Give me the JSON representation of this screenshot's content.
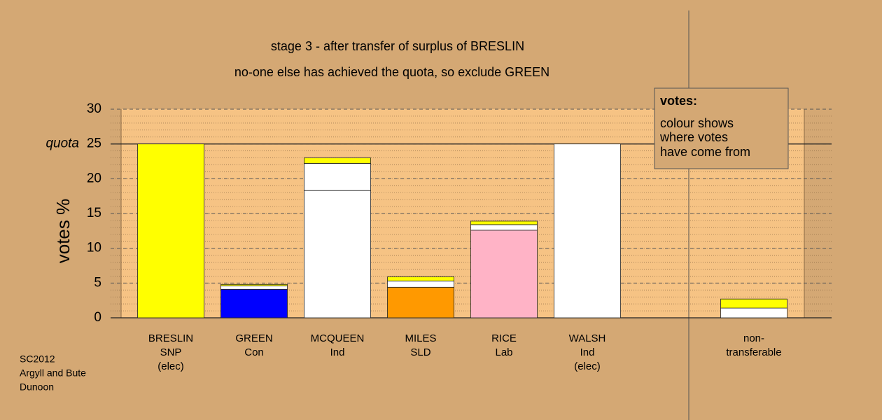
{
  "chart_data": {
    "type": "stacked-bar",
    "title": "stage 3 - after transfer of surplus of BRESLIN",
    "subtitle": "no-one else has achieved the quota, so exclude GREEN",
    "y_label": "votes %",
    "categories": [
      [
        "BRESLIN",
        "SNP",
        "(elec)"
      ],
      [
        "GREEN",
        "Con"
      ],
      [
        "MCQUEEN",
        "Ind"
      ],
      [
        "MILES",
        "SLD"
      ],
      [
        "RICE",
        "Lab"
      ],
      [
        "WALSH",
        "Ind",
        "(elec)"
      ],
      null,
      [
        "non-",
        "transferable"
      ]
    ],
    "series": [
      {
        "values": [
          25,
          4.1,
          18.3,
          4.4,
          12.6,
          25,
          null,
          1.4
        ],
        "colors": [
          "#ffff00",
          "#0000ff",
          "#ffffff",
          "#ff9900",
          "#ffb3c6",
          "#ffffff",
          null,
          "#ffffff"
        ]
      },
      {
        "values": [
          null,
          0.5,
          3.9,
          0.9,
          0.8,
          null,
          null,
          1.3
        ],
        "colors": [
          null,
          "#ffffff",
          "#ffffff",
          "#ffffff",
          "#ffffff",
          null,
          null,
          "#ffff00"
        ]
      },
      {
        "values": [
          null,
          0.2,
          0.8,
          0.6,
          0.5,
          null,
          null,
          null
        ],
        "colors": [
          null,
          "#ffff00",
          "#ffff00",
          "#ffff00",
          "#ffff00",
          null,
          null,
          null
        ]
      }
    ],
    "ylim": [
      0,
      30
    ],
    "yticks": [
      0,
      5,
      10,
      15,
      20,
      25,
      30
    ],
    "grid": true,
    "minor_grid_step": 1,
    "quota": {
      "value": 25,
      "label": "quota"
    },
    "note": {
      "title": "votes:",
      "lines": [
        "colour shows",
        "where votes",
        "have come from"
      ]
    },
    "footer": [
      "SC2012",
      "Argyll and Bute",
      "Dunoon"
    ]
  }
}
